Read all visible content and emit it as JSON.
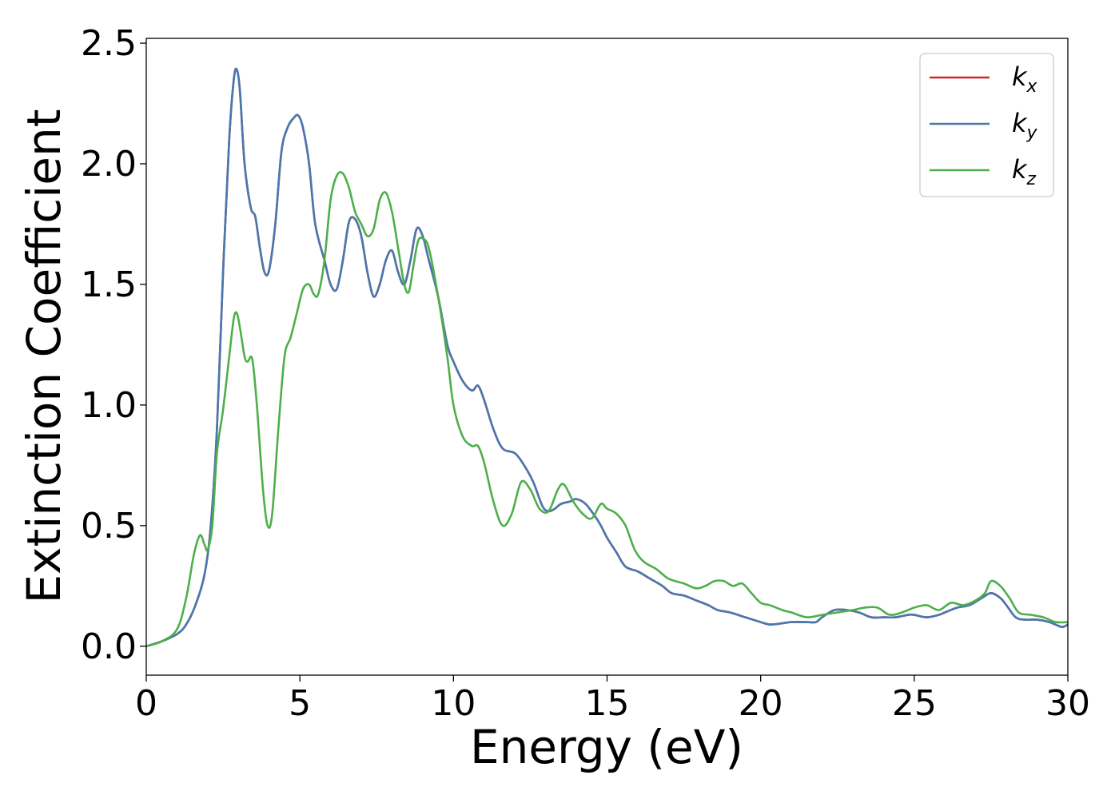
{
  "chart_data": {
    "type": "line",
    "xlabel": "Energy (eV)",
    "ylabel": "Extinction Coefficient",
    "xlim": [
      0,
      30
    ],
    "ylim": [
      -0.12,
      2.52
    ],
    "xticks": [
      0,
      5,
      10,
      15,
      20,
      25,
      30
    ],
    "xtick_labels": [
      "0",
      "5",
      "10",
      "15",
      "20",
      "25",
      "30"
    ],
    "yticks": [
      0.0,
      0.5,
      1.0,
      1.5,
      2.0,
      2.5
    ],
    "ytick_labels": [
      "0.0",
      "0.5",
      "1.0",
      "1.5",
      "2.0",
      "2.5"
    ],
    "grid": false,
    "legend_position": "top-right",
    "series": [
      {
        "name": "k",
        "subscript": "x",
        "color": "#d62728",
        "x": [
          0,
          0.5,
          1,
          1.3,
          1.6,
          1.9,
          2.1,
          2.3,
          2.5,
          2.7,
          2.85,
          2.95,
          3.05,
          3.2,
          3.4,
          3.55,
          3.7,
          3.85,
          4.0,
          4.2,
          4.4,
          4.6,
          4.8,
          4.95,
          5.1,
          5.3,
          5.5,
          5.8,
          6.0,
          6.2,
          6.4,
          6.6,
          6.8,
          7.0,
          7.2,
          7.4,
          7.6,
          7.8,
          8.0,
          8.2,
          8.4,
          8.6,
          8.8,
          9.0,
          9.2,
          9.5,
          9.8,
          10.0,
          10.3,
          10.6,
          10.8,
          11.0,
          11.3,
          11.6,
          12.0,
          12.3,
          12.6,
          12.9,
          13.1,
          13.3,
          13.5,
          13.8,
          14.0,
          14.3,
          14.6,
          14.8,
          15.0,
          15.3,
          15.6,
          16.0,
          16.4,
          16.8,
          17.1,
          17.5,
          17.9,
          18.3,
          18.6,
          19.0,
          19.5,
          20.0,
          20.3,
          20.7,
          21.0,
          21.5,
          21.8,
          22.0,
          22.4,
          22.8,
          23.2,
          23.6,
          24.0,
          24.4,
          24.8,
          25.0,
          25.4,
          25.8,
          26.0,
          26.4,
          26.8,
          27.2,
          27.5,
          27.8,
          28.0,
          28.3,
          28.6,
          29.0,
          29.4,
          29.8,
          30.0
        ],
        "values": [
          0,
          0.02,
          0.05,
          0.09,
          0.17,
          0.3,
          0.5,
          0.9,
          1.55,
          2.1,
          2.35,
          2.39,
          2.3,
          2.0,
          1.82,
          1.78,
          1.65,
          1.55,
          1.56,
          1.75,
          2.05,
          2.15,
          2.19,
          2.2,
          2.15,
          2.0,
          1.75,
          1.6,
          1.5,
          1.48,
          1.6,
          1.76,
          1.77,
          1.7,
          1.55,
          1.45,
          1.5,
          1.6,
          1.64,
          1.55,
          1.5,
          1.6,
          1.73,
          1.7,
          1.6,
          1.45,
          1.25,
          1.18,
          1.1,
          1.06,
          1.08,
          1.02,
          0.9,
          0.82,
          0.8,
          0.75,
          0.68,
          0.58,
          0.56,
          0.57,
          0.59,
          0.6,
          0.61,
          0.59,
          0.54,
          0.5,
          0.45,
          0.39,
          0.33,
          0.31,
          0.28,
          0.25,
          0.22,
          0.21,
          0.19,
          0.17,
          0.15,
          0.14,
          0.12,
          0.1,
          0.09,
          0.095,
          0.1,
          0.1,
          0.1,
          0.12,
          0.15,
          0.15,
          0.14,
          0.12,
          0.12,
          0.12,
          0.13,
          0.13,
          0.12,
          0.13,
          0.14,
          0.16,
          0.17,
          0.2,
          0.22,
          0.2,
          0.17,
          0.12,
          0.11,
          0.11,
          0.1,
          0.08,
          0.09
        ]
      },
      {
        "name": "k",
        "subscript": "y",
        "color": "#4878b0",
        "x": [
          0,
          0.5,
          1,
          1.3,
          1.6,
          1.9,
          2.1,
          2.3,
          2.5,
          2.7,
          2.85,
          2.95,
          3.05,
          3.2,
          3.4,
          3.55,
          3.7,
          3.85,
          4.0,
          4.2,
          4.4,
          4.6,
          4.8,
          4.95,
          5.1,
          5.3,
          5.5,
          5.8,
          6.0,
          6.2,
          6.4,
          6.6,
          6.8,
          7.0,
          7.2,
          7.4,
          7.6,
          7.8,
          8.0,
          8.2,
          8.4,
          8.6,
          8.8,
          9.0,
          9.2,
          9.5,
          9.8,
          10.0,
          10.3,
          10.6,
          10.8,
          11.0,
          11.3,
          11.6,
          12.0,
          12.3,
          12.6,
          12.9,
          13.1,
          13.3,
          13.5,
          13.8,
          14.0,
          14.3,
          14.6,
          14.8,
          15.0,
          15.3,
          15.6,
          16.0,
          16.4,
          16.8,
          17.1,
          17.5,
          17.9,
          18.3,
          18.6,
          19.0,
          19.5,
          20.0,
          20.3,
          20.7,
          21.0,
          21.5,
          21.8,
          22.0,
          22.4,
          22.8,
          23.2,
          23.6,
          24.0,
          24.4,
          24.8,
          25.0,
          25.4,
          25.8,
          26.0,
          26.4,
          26.8,
          27.2,
          27.5,
          27.8,
          28.0,
          28.3,
          28.6,
          29.0,
          29.4,
          29.8,
          30.0
        ],
        "values": [
          0,
          0.02,
          0.05,
          0.09,
          0.17,
          0.3,
          0.5,
          0.9,
          1.55,
          2.1,
          2.35,
          2.39,
          2.3,
          2.0,
          1.82,
          1.78,
          1.65,
          1.55,
          1.56,
          1.75,
          2.05,
          2.15,
          2.19,
          2.2,
          2.15,
          2.0,
          1.75,
          1.6,
          1.5,
          1.48,
          1.6,
          1.76,
          1.77,
          1.7,
          1.55,
          1.45,
          1.5,
          1.6,
          1.64,
          1.55,
          1.5,
          1.6,
          1.73,
          1.7,
          1.6,
          1.45,
          1.25,
          1.18,
          1.1,
          1.06,
          1.08,
          1.02,
          0.9,
          0.82,
          0.8,
          0.75,
          0.68,
          0.58,
          0.56,
          0.57,
          0.59,
          0.6,
          0.61,
          0.59,
          0.54,
          0.5,
          0.45,
          0.39,
          0.33,
          0.31,
          0.28,
          0.25,
          0.22,
          0.21,
          0.19,
          0.17,
          0.15,
          0.14,
          0.12,
          0.1,
          0.09,
          0.095,
          0.1,
          0.1,
          0.1,
          0.12,
          0.15,
          0.15,
          0.14,
          0.12,
          0.12,
          0.12,
          0.13,
          0.13,
          0.12,
          0.13,
          0.14,
          0.16,
          0.17,
          0.2,
          0.22,
          0.2,
          0.17,
          0.12,
          0.11,
          0.11,
          0.1,
          0.08,
          0.09
        ]
      },
      {
        "name": "k",
        "subscript": "z",
        "color": "#4daf4a",
        "x": [
          0,
          0.5,
          1,
          1.3,
          1.55,
          1.75,
          1.9,
          2.0,
          2.15,
          2.3,
          2.5,
          2.7,
          2.85,
          2.95,
          3.05,
          3.2,
          3.3,
          3.45,
          3.6,
          3.8,
          3.95,
          4.1,
          4.3,
          4.5,
          4.7,
          4.9,
          5.1,
          5.3,
          5.45,
          5.6,
          5.8,
          6.0,
          6.2,
          6.4,
          6.6,
          6.8,
          7.0,
          7.2,
          7.4,
          7.6,
          7.8,
          8.0,
          8.2,
          8.4,
          8.55,
          8.7,
          8.85,
          9.0,
          9.2,
          9.5,
          9.8,
          10.0,
          10.3,
          10.6,
          10.8,
          11.0,
          11.3,
          11.6,
          11.9,
          12.2,
          12.5,
          12.8,
          13.1,
          13.4,
          13.6,
          13.9,
          14.2,
          14.5,
          14.8,
          15.0,
          15.3,
          15.6,
          15.9,
          16.2,
          16.6,
          17.0,
          17.5,
          17.9,
          18.2,
          18.5,
          18.8,
          19.1,
          19.4,
          19.7,
          20.0,
          20.3,
          20.7,
          21.0,
          21.5,
          22.0,
          22.5,
          23.0,
          23.4,
          23.8,
          24.2,
          24.6,
          25.0,
          25.4,
          25.8,
          26.2,
          26.6,
          27.0,
          27.3,
          27.5,
          27.8,
          28.1,
          28.4,
          28.8,
          29.2,
          29.6,
          30.0
        ],
        "values": [
          0,
          0.02,
          0.07,
          0.2,
          0.38,
          0.46,
          0.42,
          0.4,
          0.5,
          0.8,
          0.98,
          1.2,
          1.36,
          1.38,
          1.32,
          1.2,
          1.18,
          1.19,
          1.0,
          0.65,
          0.5,
          0.55,
          0.9,
          1.2,
          1.28,
          1.38,
          1.48,
          1.5,
          1.46,
          1.46,
          1.6,
          1.85,
          1.95,
          1.96,
          1.9,
          1.8,
          1.75,
          1.7,
          1.73,
          1.85,
          1.88,
          1.8,
          1.65,
          1.5,
          1.47,
          1.58,
          1.68,
          1.69,
          1.65,
          1.45,
          1.2,
          1.0,
          0.87,
          0.83,
          0.83,
          0.76,
          0.6,
          0.5,
          0.55,
          0.68,
          0.65,
          0.57,
          0.56,
          0.65,
          0.67,
          0.6,
          0.55,
          0.53,
          0.59,
          0.57,
          0.55,
          0.5,
          0.4,
          0.35,
          0.32,
          0.28,
          0.26,
          0.24,
          0.25,
          0.27,
          0.27,
          0.25,
          0.26,
          0.22,
          0.18,
          0.17,
          0.15,
          0.14,
          0.12,
          0.13,
          0.14,
          0.15,
          0.16,
          0.16,
          0.13,
          0.14,
          0.16,
          0.17,
          0.15,
          0.18,
          0.17,
          0.19,
          0.22,
          0.27,
          0.25,
          0.2,
          0.14,
          0.13,
          0.12,
          0.1,
          0.1
        ]
      }
    ]
  }
}
